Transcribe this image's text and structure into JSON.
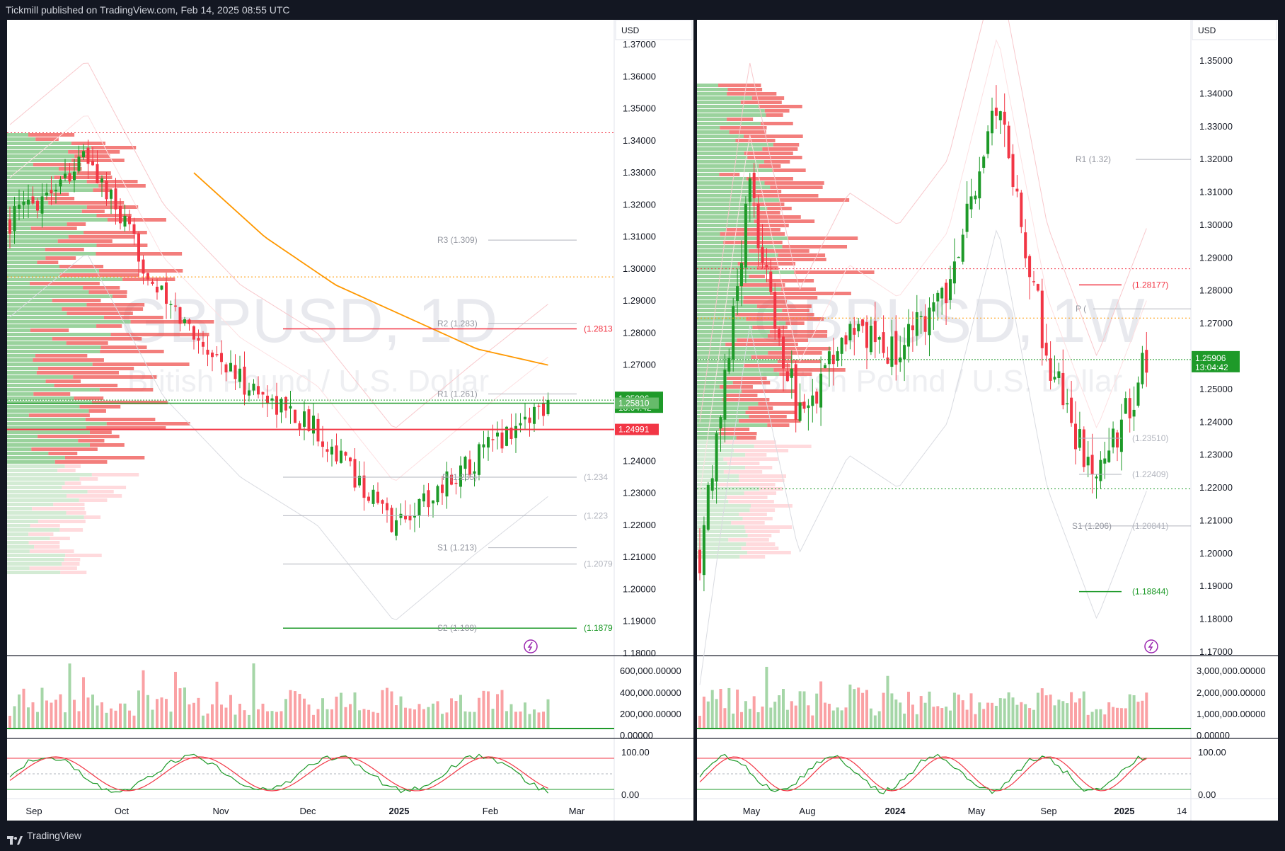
{
  "header": {
    "publisher": "Tickmill published on TradingView.com, Feb 14, 2025 08:55 UTC"
  },
  "footer": {
    "brand": "TradingView"
  },
  "colors": {
    "up": "#089981",
    "up_candle": "#1e9a29",
    "down": "#f23645",
    "up_vol": "#a5d6a7",
    "down_vol": "#faa1a4",
    "ma": "#ff9800",
    "pivot_line": "#b2b5be",
    "bg": "#131722"
  },
  "charts": {
    "left": {
      "watermark_symbol": "GBPUSD, 1D",
      "watermark_name": "British Pound / U.S. Dollar",
      "currency": "USD",
      "price_labels": [
        "1.37000",
        "1.36000",
        "1.35000",
        "1.34000",
        "1.33000",
        "1.32000",
        "1.31000",
        "1.30000",
        "1.29000",
        "1.28000",
        "1.27000",
        "1.26000",
        "1.25000",
        "1.24000",
        "1.23000",
        "1.22000",
        "1.21000",
        "1.20000",
        "1.19000",
        "1.18000"
      ],
      "last_price": "1.25906",
      "countdown": "13:04:42",
      "level_green": "1.25810",
      "level_red": "1.24991",
      "time_labels": [
        "Sep",
        "Oct",
        "Nov",
        "Dec",
        "2025",
        "Feb",
        "Mar"
      ],
      "volume_labels": [
        "600,000.00000",
        "400,000.00000",
        "200,000.00000",
        "0.00000"
      ],
      "osc_labels": [
        "100.00",
        "0.00"
      ],
      "pivots": [
        {
          "label": "R3 (1.309)",
          "right_label": ""
        },
        {
          "label": "R2 (1.283)",
          "right_label": ""
        },
        {
          "label": "",
          "right_label": "(1.2813"
        },
        {
          "label": "R1 (1.261)",
          "right_label": ""
        },
        {
          "label": "P (1.235)",
          "right_label": "(1.234"
        },
        {
          "label": "",
          "right_label": "(1.223"
        },
        {
          "label": "S1 (1.213)",
          "right_label": ""
        },
        {
          "label": "",
          "right_label": "(1.2079"
        },
        {
          "label": "S2 (1.188)",
          "right_label": "(1.1879"
        }
      ]
    },
    "right": {
      "watermark_symbol": "GBPUSD, 1W",
      "watermark_name": "British Pound / U.S. Dollar",
      "currency": "USD",
      "price_labels": [
        "1.35000",
        "1.34000",
        "1.33000",
        "1.32000",
        "1.31000",
        "1.30000",
        "1.29000",
        "1.28000",
        "1.27000",
        "1.26000",
        "1.25000",
        "1.24000",
        "1.23000",
        "1.22000",
        "1.21000",
        "1.20000",
        "1.19000",
        "1.18000",
        "1.17000"
      ],
      "last_price": "1.25906",
      "countdown": "13:04:42",
      "time_labels": [
        "May",
        "Aug",
        "2024",
        "May",
        "Sep",
        "2025",
        "14"
      ],
      "volume_labels": [
        "3,000,000.00000",
        "2,000,000.00000",
        "1,000,000.00000",
        "0.00000"
      ],
      "osc_labels": [
        "100.00",
        "0.00"
      ],
      "pivots": [
        {
          "label": "R1 (1.32)",
          "right_label": ""
        },
        {
          "label": "",
          "right_label": "(1.28177)"
        },
        {
          "label": "P (",
          "right_label": ""
        },
        {
          "label": "",
          "right_label": "(1.23510)"
        },
        {
          "label": "",
          "right_label": "(1.22409)"
        },
        {
          "label": "S1 (1.206)",
          "right_label": "(1.20841)"
        },
        {
          "label": "",
          "right_label": "(1.18844)"
        }
      ]
    }
  },
  "chart_data": [
    {
      "type": "candlestick",
      "title": "GBPUSD, 1D",
      "subtitle": "British Pound / U.S. Dollar",
      "ylim": [
        1.18,
        1.37
      ],
      "x": [
        "Sep",
        "Oct",
        "Nov",
        "Dec",
        "2025",
        "Feb"
      ],
      "close_approx": [
        1.315,
        1.335,
        1.29,
        1.265,
        1.25,
        1.22,
        1.24,
        1.259
      ],
      "last": 1.25906,
      "moving_average": [
        1.33,
        1.31,
        1.295,
        1.285,
        1.275,
        1.27
      ],
      "pivots": {
        "R3": 1.309,
        "R2": 1.283,
        "R1": 1.261,
        "P": 1.235,
        "S1": 1.213,
        "S2": 1.188
      }
    },
    {
      "type": "candlestick",
      "title": "GBPUSD, 1W",
      "subtitle": "British Pound / U.S. Dollar",
      "ylim": [
        1.17,
        1.35
      ],
      "x": [
        "May",
        "Aug",
        "2024",
        "May",
        "Sep",
        "2025"
      ],
      "close_approx": [
        1.2,
        1.31,
        1.24,
        1.27,
        1.26,
        1.28,
        1.34,
        1.26,
        1.22,
        1.259
      ],
      "last": 1.25906,
      "pivots": {
        "R1": 1.32,
        "P": 1.268,
        "S1": 1.206
      }
    }
  ]
}
